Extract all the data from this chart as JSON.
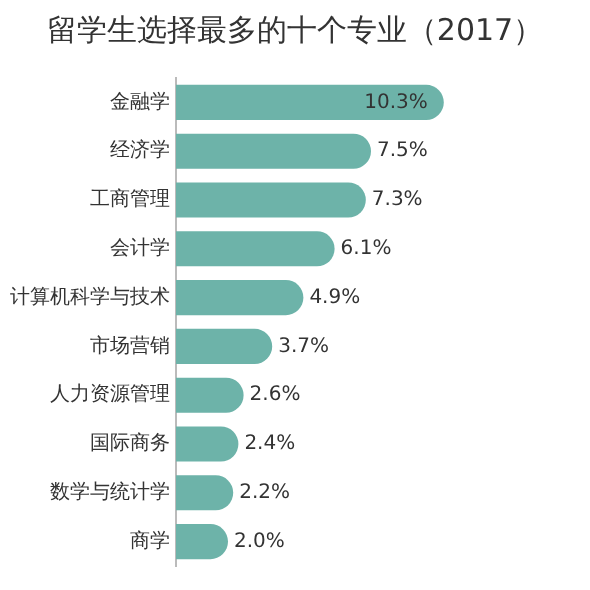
{
  "chart_data": {
    "type": "bar",
    "orientation": "horizontal",
    "title": "留学生选择最多的十个专业（2017）",
    "categories": [
      "金融学",
      "经济学",
      "工商管理",
      "会计学",
      "计算机科学与技术",
      "市场营销",
      "人力资源管理",
      "国际商务",
      "数学与统计学",
      "商学"
    ],
    "values": [
      10.3,
      7.5,
      7.3,
      6.1,
      4.9,
      3.7,
      2.6,
      2.4,
      2.2,
      2.0
    ],
    "value_labels": [
      "10.3%",
      "7.5%",
      "7.3%",
      "6.1%",
      "4.9%",
      "3.7%",
      "2.6%",
      "2.4%",
      "2.2%",
      "2.0%"
    ],
    "color": "#6db3a9",
    "legend": false
  }
}
